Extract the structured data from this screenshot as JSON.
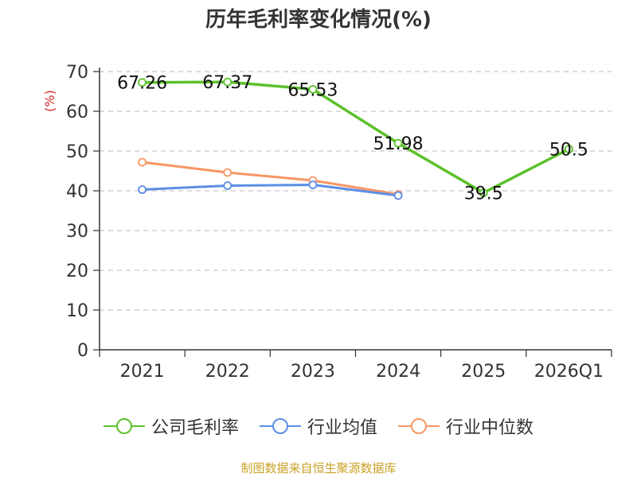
{
  "chart_data": {
    "type": "line",
    "title": "历年毛利率变化情况(%)",
    "ylabel": "(%)",
    "xlabel": "",
    "ylim": [
      0,
      70
    ],
    "yticks": [
      0,
      10,
      20,
      30,
      40,
      50,
      60,
      70
    ],
    "categories": [
      "2021",
      "2022",
      "2023",
      "2024",
      "2025",
      "2026Q1"
    ],
    "grid": true,
    "legend_position": "bottom",
    "series": [
      {
        "name": "公司毛利率",
        "color": "#5cc12b",
        "values": [
          67.26,
          67.37,
          65.53,
          51.98,
          39.5,
          50.5
        ],
        "labels": [
          "67.26",
          "67.37",
          "65.53",
          "51.98",
          "39.5",
          "50.5"
        ]
      },
      {
        "name": "行业均值",
        "color": "#5b8ee6",
        "values": [
          40.3,
          41.3,
          41.5,
          38.8,
          null,
          null
        ]
      },
      {
        "name": "行业中位数",
        "color": "#f79664",
        "values": [
          47.2,
          44.6,
          42.6,
          39.1,
          null,
          null
        ]
      }
    ]
  },
  "source_note": "制图数据来自恒生聚源数据库"
}
